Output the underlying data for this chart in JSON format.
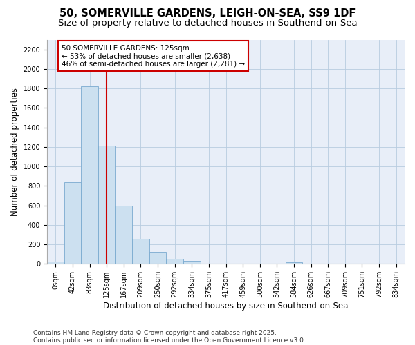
{
  "title1": "50, SOMERVILLE GARDENS, LEIGH-ON-SEA, SS9 1DF",
  "title2": "Size of property relative to detached houses in Southend-on-Sea",
  "xlabel": "Distribution of detached houses by size in Southend-on-Sea",
  "ylabel": "Number of detached properties",
  "bar_color": "#cce0f0",
  "bar_edge_color": "#7aaad0",
  "categories": [
    "0sqm",
    "42sqm",
    "83sqm",
    "125sqm",
    "167sqm",
    "209sqm",
    "250sqm",
    "292sqm",
    "334sqm",
    "375sqm",
    "417sqm",
    "459sqm",
    "500sqm",
    "542sqm",
    "584sqm",
    "626sqm",
    "667sqm",
    "709sqm",
    "751sqm",
    "792sqm",
    "834sqm"
  ],
  "values": [
    25,
    840,
    1820,
    1210,
    600,
    255,
    125,
    50,
    30,
    0,
    0,
    0,
    0,
    0,
    18,
    0,
    0,
    0,
    0,
    0,
    0
  ],
  "vline_x": 3,
  "vline_color": "#cc0000",
  "annotation_text": "50 SOMERVILLE GARDENS: 125sqm\n← 53% of detached houses are smaller (2,638)\n46% of semi-detached houses are larger (2,281) →",
  "annotation_box_facecolor": "#ffffff",
  "annotation_box_edgecolor": "#cc0000",
  "ylim": [
    0,
    2300
  ],
  "yticks": [
    0,
    200,
    400,
    600,
    800,
    1000,
    1200,
    1400,
    1600,
    1800,
    2000,
    2200
  ],
  "bg_color": "#e8eef8",
  "title_fontsize": 10.5,
  "subtitle_fontsize": 9.5,
  "tick_fontsize": 7,
  "label_fontsize": 8.5,
  "footer": "Contains HM Land Registry data © Crown copyright and database right 2025.\nContains public sector information licensed under the Open Government Licence v3.0.",
  "footer_fontsize": 6.5
}
